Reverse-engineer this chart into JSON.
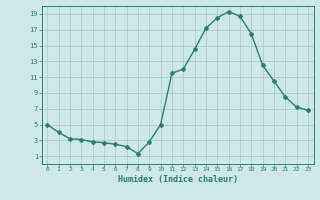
{
  "x": [
    0,
    1,
    2,
    3,
    4,
    5,
    6,
    7,
    8,
    9,
    10,
    11,
    12,
    13,
    14,
    15,
    16,
    17,
    18,
    19,
    20,
    21,
    22,
    23
  ],
  "y": [
    5,
    4,
    3.2,
    3.1,
    2.8,
    2.7,
    2.5,
    2.2,
    1.3,
    2.8,
    5,
    11.5,
    12,
    14.5,
    17.2,
    18.5,
    19.3,
    18.7,
    16.5,
    12.5,
    10.5,
    8.5,
    7.2,
    6.8
  ],
  "line_color": "#2e7d6e",
  "marker": "D",
  "marker_size": 2,
  "bg_color": "#cce8e8",
  "grid_color": "#aacccc",
  "xlabel": "Humidex (Indice chaleur)",
  "xlim": [
    -0.5,
    23.5
  ],
  "ylim": [
    0,
    20
  ],
  "yticks": [
    1,
    3,
    5,
    7,
    9,
    11,
    13,
    15,
    17,
    19
  ],
  "xticks": [
    0,
    1,
    2,
    3,
    4,
    5,
    6,
    7,
    8,
    9,
    10,
    11,
    12,
    13,
    14,
    15,
    16,
    17,
    18,
    19,
    20,
    21,
    22,
    23
  ]
}
